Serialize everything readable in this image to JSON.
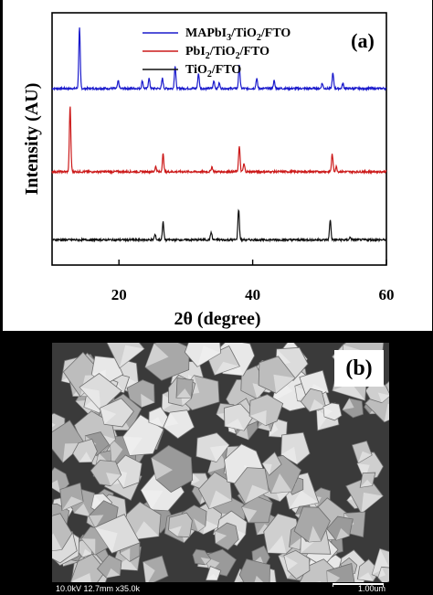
{
  "figure": {
    "panel_a_label": "(a)",
    "panel_b_label": "(b)"
  },
  "chart_data": {
    "type": "line",
    "xlabel": "2θ (degree)",
    "ylabel": "Intensity (AU)",
    "xlim": [
      10,
      60
    ],
    "xticks": [
      20,
      40,
      60
    ],
    "yticks_shown": false,
    "legend_position": "top-right",
    "series": [
      {
        "name": "MAPbI3/TiO2/FTO",
        "name_parts": [
          [
            "MAPbI",
            "3",
            "/TiO",
            "2",
            "/FTO"
          ]
        ],
        "color": "#1a1acc",
        "baseline": 0.7,
        "peaks": [
          {
            "x": 14.1,
            "height": 0.24
          },
          {
            "x": 19.9,
            "height": 0.03
          },
          {
            "x": 23.5,
            "height": 0.03
          },
          {
            "x": 24.5,
            "height": 0.04
          },
          {
            "x": 26.5,
            "height": 0.04
          },
          {
            "x": 28.4,
            "height": 0.09
          },
          {
            "x": 31.9,
            "height": 0.06
          },
          {
            "x": 34.2,
            "height": 0.03
          },
          {
            "x": 35.0,
            "height": 0.02
          },
          {
            "x": 38.0,
            "height": 0.09
          },
          {
            "x": 40.6,
            "height": 0.04
          },
          {
            "x": 43.2,
            "height": 0.03
          },
          {
            "x": 50.4,
            "height": 0.02
          },
          {
            "x": 52.0,
            "height": 0.06
          },
          {
            "x": 53.5,
            "height": 0.02
          }
        ]
      },
      {
        "name": "PbI2/TiO2/FTO",
        "name_parts": [
          [
            "PbI",
            "2",
            "/TiO",
            "2",
            "/FTO"
          ]
        ],
        "color": "#cc1a1a",
        "baseline": 0.37,
        "peaks": [
          {
            "x": 12.7,
            "height": 0.26
          },
          {
            "x": 25.5,
            "height": 0.02
          },
          {
            "x": 26.6,
            "height": 0.07
          },
          {
            "x": 33.9,
            "height": 0.02
          },
          {
            "x": 38.0,
            "height": 0.1
          },
          {
            "x": 38.7,
            "height": 0.03
          },
          {
            "x": 51.9,
            "height": 0.07
          },
          {
            "x": 52.5,
            "height": 0.02
          }
        ]
      },
      {
        "name": "TiO2/FTO",
        "name_parts": [
          [
            "TiO",
            "2",
            "/FTO",
            "",
            ""
          ]
        ],
        "color": "#111111",
        "baseline": 0.1,
        "peaks": [
          {
            "x": 25.4,
            "height": 0.02
          },
          {
            "x": 26.6,
            "height": 0.07
          },
          {
            "x": 33.8,
            "height": 0.03
          },
          {
            "x": 37.9,
            "height": 0.12
          },
          {
            "x": 51.6,
            "height": 0.08
          },
          {
            "x": 54.6,
            "height": 0.01
          }
        ]
      }
    ]
  },
  "micrograph": {
    "label": "(b)",
    "info": "10.0kV 12.7mm x35.0k",
    "scale": "1.00um"
  }
}
